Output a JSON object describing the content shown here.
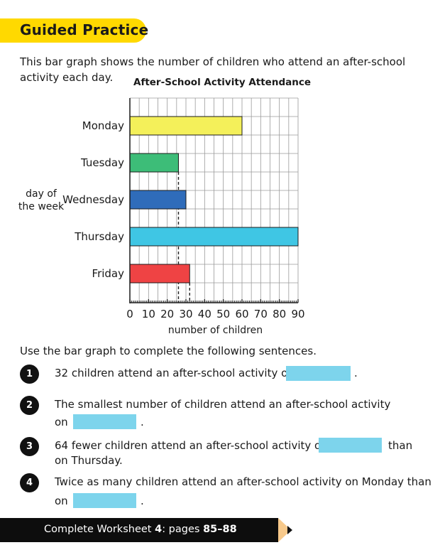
{
  "section_title": "Guided Practice",
  "intro_text": "This bar graph shows the number of children who attend an after-school activity each day.",
  "instruction": "Use the bar graph to complete the following sentences.",
  "questions": [
    {
      "number": "1",
      "line1_before": "32 children attend an after-school activity on",
      "line1_after": ".",
      "line2": ""
    },
    {
      "number": "2",
      "line1": "The smallest number of children attend an after-school activity",
      "line2_before": "on",
      "line2_after": "."
    },
    {
      "number": "3",
      "line1_before": "64 fewer children attend an after-school activity on",
      "line1_after": "than",
      "line2": "on Thursday."
    },
    {
      "number": "4",
      "line1": "Twice as many children attend an after-school activity on Monday than",
      "line2_before": "on",
      "line2_after": "."
    }
  ],
  "footer": {
    "prefix": "Complete Worksheet ",
    "worksheet": "4",
    "middle": ": pages ",
    "pages": "85–88"
  },
  "colors": {
    "banner": "#ffd900",
    "answer_blank": "#7dd4ec",
    "footer_bg": "#0d0d0d",
    "pencil": "#f7c98b"
  },
  "chart_data": {
    "type": "bar",
    "orientation": "horizontal",
    "title": "After-School Activity Attendance",
    "xlabel": "number of children",
    "ylabel": "day of the week",
    "categories": [
      "Monday",
      "Tuesday",
      "Wednesday",
      "Thursday",
      "Friday"
    ],
    "values": [
      60,
      26,
      30,
      90,
      32
    ],
    "bar_colors": [
      "#f4f05a",
      "#3dbd78",
      "#2f6cba",
      "#3fc6e4",
      "#ef4344"
    ],
    "xlim": [
      0,
      90
    ],
    "xticks": [
      "0",
      "10",
      "20",
      "30",
      "40",
      "50",
      "60",
      "70",
      "80",
      "90"
    ],
    "reference_lines": [
      26,
      32
    ],
    "grid": true
  }
}
